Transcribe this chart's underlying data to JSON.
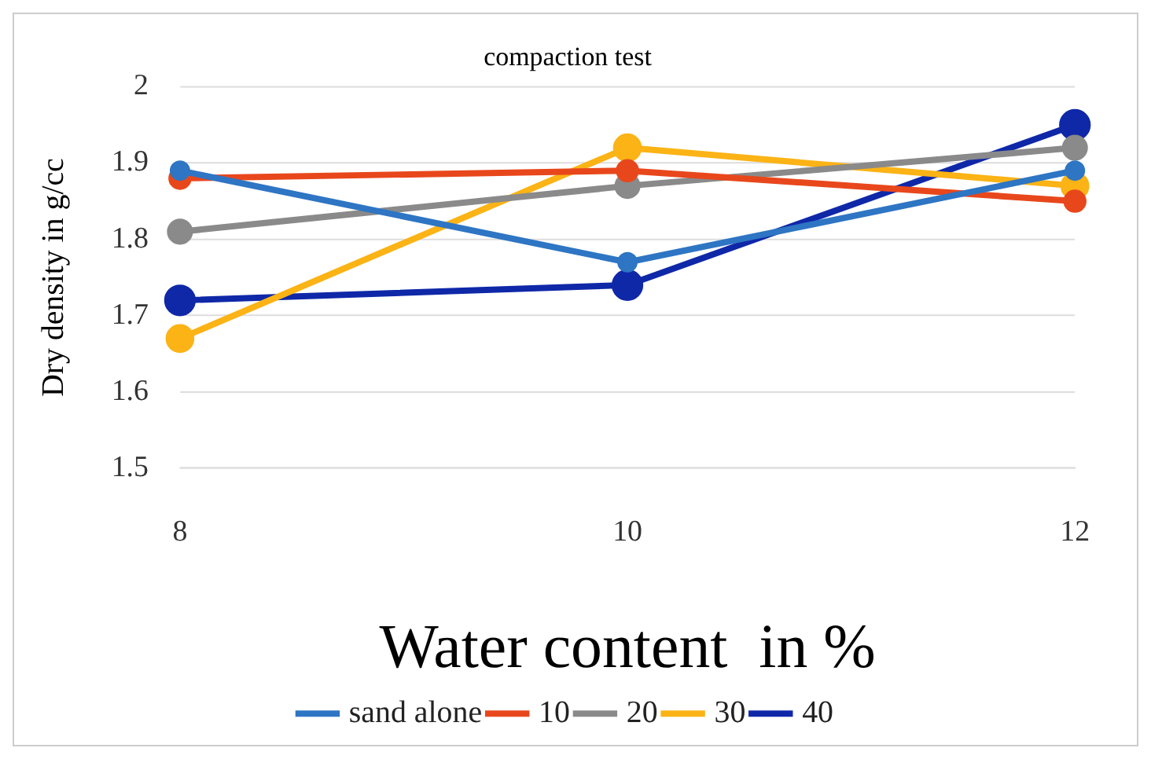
{
  "chart_data": {
    "type": "line",
    "title": "compaction test",
    "xlabel": "Water content  in %",
    "ylabel": "Dry density in g/cc",
    "categories": [
      "8",
      "10",
      "12"
    ],
    "series": [
      {
        "name": "sand alone",
        "color": "#2e75c4",
        "values": [
          1.89,
          1.77,
          1.89
        ]
      },
      {
        "name": "10",
        "color": "#e8471c",
        "values": [
          1.88,
          1.89,
          1.85
        ]
      },
      {
        "name": "20",
        "color": "#8a8a8a",
        "values": [
          1.81,
          1.87,
          1.92
        ]
      },
      {
        "name": "30",
        "color": "#fbb315",
        "values": [
          1.67,
          1.92,
          1.87
        ]
      },
      {
        "name": "40",
        "color": "#0f28a8",
        "values": [
          1.72,
          1.74,
          1.95
        ]
      }
    ],
    "ylim": [
      1.5,
      2
    ],
    "yticks": [
      1.5,
      1.6,
      1.7,
      1.8,
      1.9,
      2
    ],
    "grid": "y",
    "legend": "bottom",
    "marker": "circle",
    "line_style": "solid"
  }
}
